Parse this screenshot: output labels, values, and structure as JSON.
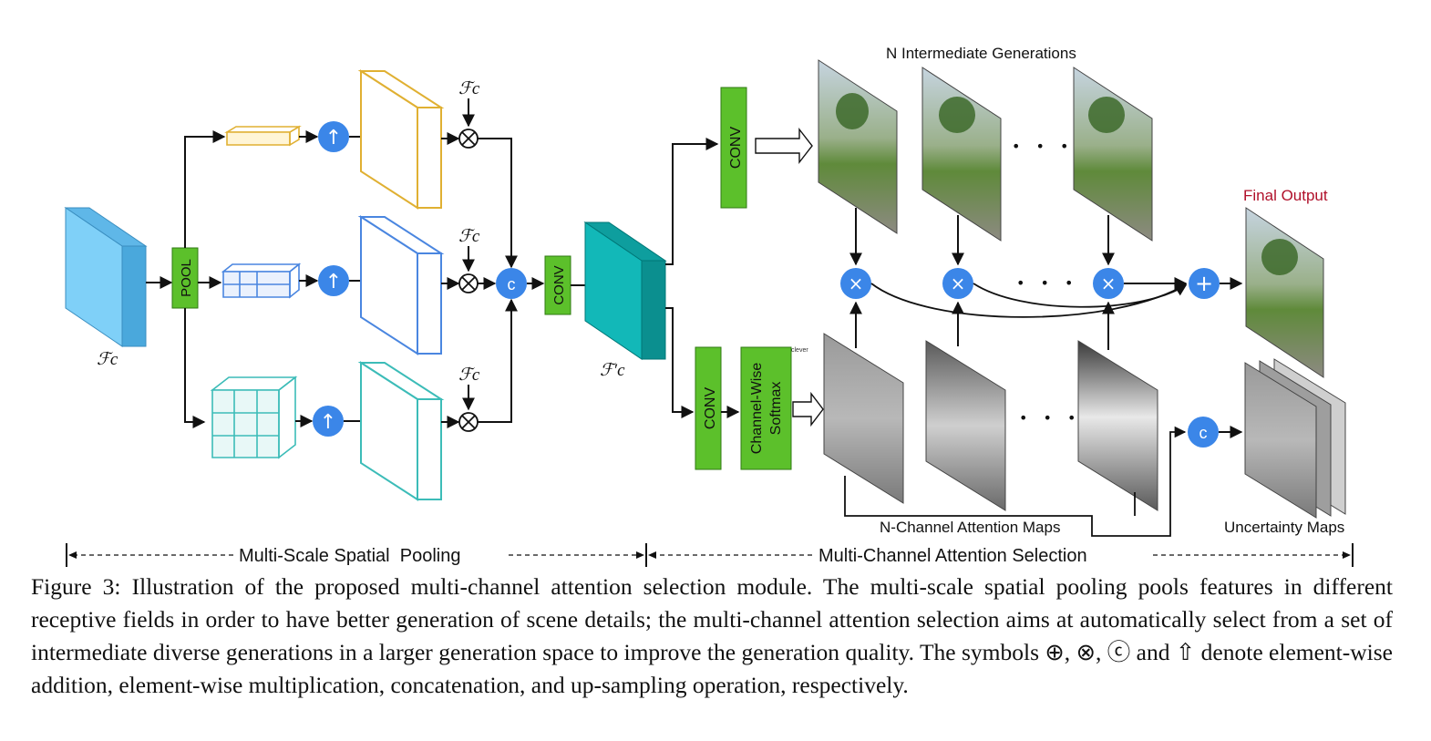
{
  "labels": {
    "pool": "POOL",
    "conv": "CONV",
    "softmax_line1": "Channel-Wise",
    "softmax_line2": "Softmax",
    "softmax_tag": "clever",
    "fc": "ℱc",
    "fc_prime": "ℱ′c",
    "n_intermediate": "N Intermediate Generations",
    "final_output": "Final Output",
    "n_channel_attention": "N-Channel Attention Maps",
    "uncertainty_maps": "Uncertainty Maps",
    "dots": "• • •",
    "section_left": "Multi-Scale Spatial  Pooling",
    "section_right": "Multi-Channel Attention Selection"
  },
  "symbols": {
    "upsample": "↑",
    "multiply": "×",
    "concat": "c",
    "add": "+",
    "cross": "⊗"
  },
  "colors": {
    "input_block": "#7fd0f8",
    "green_op": "#5cc02b",
    "teal_block": "#12b8b8",
    "blue_circle": "#3b86e8",
    "yellow_branch": "#e0b032",
    "blue_branch": "#4a86e0",
    "cyan_branch": "#3cbcb8",
    "final_output_label": "#b0102a"
  },
  "caption": "Figure 3: Illustration of the proposed multi-channel attention selection module. The multi-scale spatial pooling pools features in different receptive fields in order to have better generation of scene details; the multi-channel attention selection aims at automatically select from a set of intermediate diverse generations in a larger generation space to improve the generation quality. The symbols ⊕, ⊗, ⓒ and ⇧ denote element-wise addition, element-wise multiplication, concatenation, and up-sampling operation, respectively."
}
